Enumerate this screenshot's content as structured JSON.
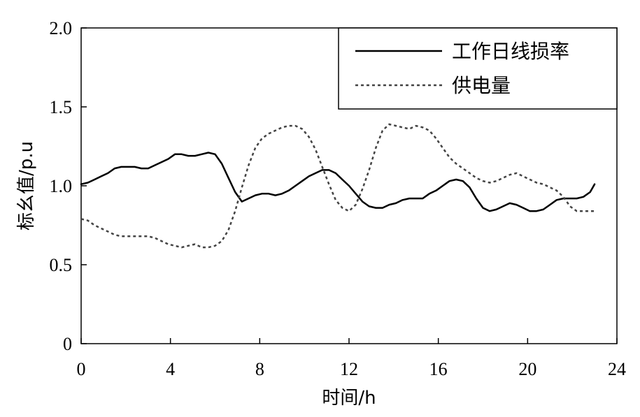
{
  "chart_data": {
    "type": "line",
    "title": "",
    "xlabel": "时间/h",
    "ylabel": "标幺值/p.u",
    "xlim": [
      0,
      24
    ],
    "ylim": [
      0,
      2.0
    ],
    "x_ticks": [
      0,
      4,
      8,
      12,
      16,
      20,
      24
    ],
    "y_ticks": [
      0,
      0.5,
      1.0,
      1.5,
      2.0
    ],
    "x_tick_labels": [
      "0",
      "4",
      "8",
      "12",
      "16",
      "20",
      "24"
    ],
    "y_tick_labels": [
      "0",
      "0.5",
      "1.0",
      "1.5",
      "2.0"
    ],
    "grid": false,
    "legend_position": "top-right",
    "series": [
      {
        "name": "工作日线损率",
        "style": "solid",
        "color": "#000000",
        "x": [
          0,
          0.3,
          0.6,
          0.9,
          1.2,
          1.5,
          1.8,
          2.1,
          2.4,
          2.7,
          3.0,
          3.3,
          3.6,
          3.9,
          4.2,
          4.5,
          4.8,
          5.1,
          5.4,
          5.7,
          6.0,
          6.3,
          6.6,
          6.9,
          7.2,
          7.5,
          7.8,
          8.1,
          8.4,
          8.7,
          9.0,
          9.3,
          9.6,
          9.9,
          10.2,
          10.5,
          10.8,
          11.1,
          11.4,
          11.7,
          12.0,
          12.3,
          12.6,
          12.9,
          13.2,
          13.5,
          13.8,
          14.1,
          14.4,
          14.7,
          15.0,
          15.3,
          15.6,
          15.9,
          16.2,
          16.5,
          16.8,
          17.1,
          17.4,
          17.7,
          18.0,
          18.3,
          18.6,
          18.9,
          19.2,
          19.5,
          19.8,
          20.1,
          20.4,
          20.7,
          21.0,
          21.3,
          21.6,
          21.9,
          22.2,
          22.5,
          22.8,
          23.0
        ],
        "values": [
          1.01,
          1.02,
          1.04,
          1.06,
          1.08,
          1.11,
          1.12,
          1.12,
          1.12,
          1.11,
          1.11,
          1.13,
          1.15,
          1.17,
          1.2,
          1.2,
          1.19,
          1.19,
          1.2,
          1.21,
          1.2,
          1.14,
          1.05,
          0.96,
          0.9,
          0.92,
          0.94,
          0.95,
          0.95,
          0.94,
          0.95,
          0.97,
          1.0,
          1.03,
          1.06,
          1.08,
          1.1,
          1.1,
          1.08,
          1.04,
          1.0,
          0.95,
          0.9,
          0.87,
          0.86,
          0.86,
          0.88,
          0.89,
          0.91,
          0.92,
          0.92,
          0.92,
          0.95,
          0.97,
          1.0,
          1.03,
          1.04,
          1.03,
          0.99,
          0.92,
          0.86,
          0.84,
          0.85,
          0.87,
          0.89,
          0.88,
          0.86,
          0.84,
          0.84,
          0.85,
          0.88,
          0.91,
          0.92,
          0.92,
          0.92,
          0.93,
          0.96,
          1.01
        ]
      },
      {
        "name": "供电量",
        "style": "dotted",
        "color": "#444444",
        "x": [
          0,
          0.3,
          0.6,
          0.9,
          1.2,
          1.5,
          1.8,
          2.1,
          2.4,
          2.7,
          3.0,
          3.3,
          3.6,
          3.9,
          4.2,
          4.5,
          4.8,
          5.1,
          5.4,
          5.7,
          6.0,
          6.3,
          6.6,
          6.9,
          7.2,
          7.5,
          7.8,
          8.1,
          8.4,
          8.7,
          9.0,
          9.3,
          9.6,
          9.9,
          10.2,
          10.5,
          10.8,
          11.1,
          11.4,
          11.7,
          12.0,
          12.3,
          12.6,
          12.9,
          13.2,
          13.5,
          13.8,
          14.1,
          14.4,
          14.7,
          15.0,
          15.3,
          15.6,
          15.9,
          16.2,
          16.5,
          16.8,
          17.1,
          17.4,
          17.7,
          18.0,
          18.3,
          18.6,
          18.9,
          19.2,
          19.5,
          19.8,
          20.1,
          20.4,
          20.7,
          21.0,
          21.3,
          21.6,
          21.9,
          22.2,
          22.5,
          22.8,
          23.0
        ],
        "values": [
          0.79,
          0.78,
          0.75,
          0.73,
          0.71,
          0.69,
          0.68,
          0.68,
          0.68,
          0.68,
          0.68,
          0.67,
          0.65,
          0.63,
          0.62,
          0.61,
          0.62,
          0.63,
          0.61,
          0.61,
          0.62,
          0.65,
          0.72,
          0.84,
          0.99,
          1.13,
          1.24,
          1.3,
          1.33,
          1.35,
          1.37,
          1.38,
          1.38,
          1.36,
          1.31,
          1.23,
          1.12,
          1.01,
          0.91,
          0.86,
          0.84,
          0.88,
          0.98,
          1.1,
          1.24,
          1.35,
          1.39,
          1.38,
          1.37,
          1.36,
          1.38,
          1.37,
          1.35,
          1.3,
          1.24,
          1.18,
          1.14,
          1.11,
          1.08,
          1.05,
          1.03,
          1.02,
          1.03,
          1.05,
          1.07,
          1.08,
          1.06,
          1.04,
          1.02,
          1.01,
          0.99,
          0.97,
          0.93,
          0.87,
          0.84,
          0.84,
          0.84,
          0.84
        ]
      }
    ]
  }
}
